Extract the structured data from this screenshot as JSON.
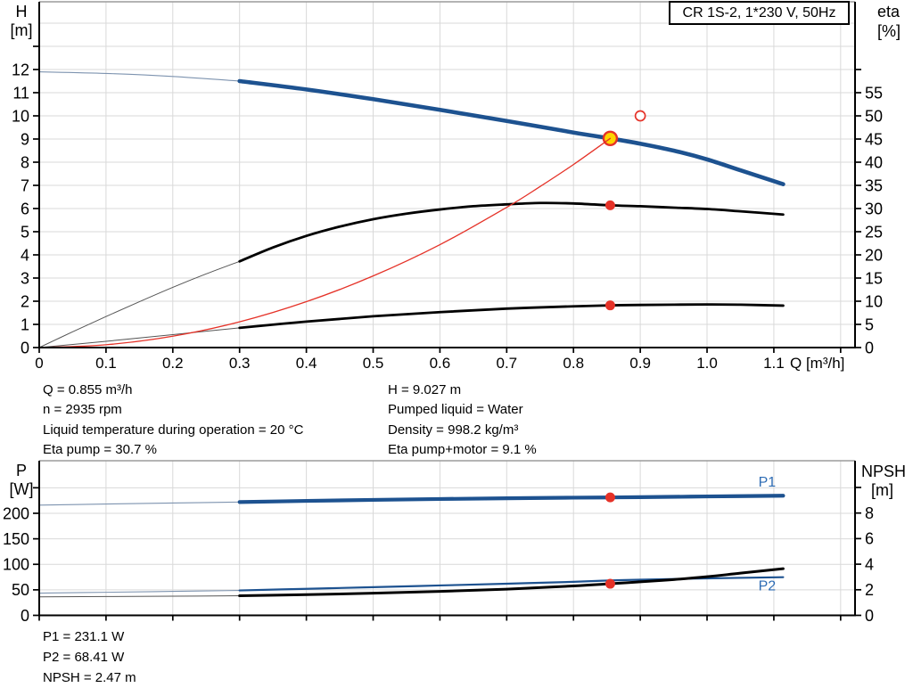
{
  "colors": {
    "curve_blue": "#1d5290",
    "label_blue": "#2e6cb4",
    "red": "#e53228",
    "yellow": "#ffd400",
    "black": "#000000",
    "grid": "#d9d9d9",
    "axis": "#000000",
    "border_top": "#9c9c9c",
    "ext_blue": "#7d93af",
    "ext_dark": "#555555"
  },
  "info_block": {
    "left": [
      "Q = 0.855 m³/h",
      "n = 2935 rpm",
      "Liquid temperature during operation = 20 °C",
      "Eta pump = 30.7 %"
    ],
    "right": [
      "H = 9.027 m",
      "Pumped liquid = Water",
      "Density = 998.2 kg/m³",
      "Eta pump+motor = 9.1 %"
    ]
  },
  "result_block": {
    "lines": [
      "P1 = 231.1 W",
      "P2 = 68.41 W",
      "NPSH = 2.47 m"
    ]
  },
  "chart_data": [
    {
      "id": "hq-chart",
      "type": "line",
      "title": "CR 1S-2, 1*230 V, 50Hz",
      "x": {
        "title": "Q [m³/h]",
        "min": 0,
        "max": 1.2216,
        "ticks": [
          "0",
          "0.1",
          "0.2",
          "0.3",
          "0.4",
          "0.5",
          "0.6",
          "0.7",
          "0.8",
          "0.9",
          "1.0",
          "1.1"
        ],
        "grid": [
          0.1,
          0.2,
          0.3,
          0.4,
          0.5,
          0.6,
          0.7,
          0.8,
          0.9,
          1.0,
          1.1,
          1.2
        ],
        "show_labels": true
      },
      "left": {
        "title": "H",
        "unit": "[m]",
        "min": 0,
        "max": 14.923,
        "ticks": [
          0,
          1,
          2,
          3,
          4,
          5,
          6,
          7,
          8,
          9,
          10,
          11,
          12
        ],
        "extra_ticks": [
          13
        ],
        "grid": [
          1,
          2,
          3,
          4,
          5,
          6,
          7,
          8,
          9,
          10,
          11,
          12,
          13,
          14
        ]
      },
      "right": {
        "title": "eta",
        "unit": "[%]",
        "min": 0,
        "max": 74.62,
        "ticks": [
          0,
          5,
          10,
          15,
          20,
          25,
          30,
          35,
          40,
          45,
          50,
          55
        ],
        "extra_ticks": [
          60
        ]
      },
      "series": [
        {
          "name": "head-curve-extension",
          "axis": "left",
          "color": "ext_blue",
          "width": 1.1,
          "points": [
            [
              0,
              11.9
            ],
            [
              0.1,
              11.83
            ],
            [
              0.2,
              11.7
            ],
            [
              0.3,
              11.5
            ]
          ]
        },
        {
          "name": "head-curve",
          "axis": "left",
          "color": "curve_blue",
          "width": 4.6,
          "points": [
            [
              0.3,
              11.5
            ],
            [
              0.4,
              11.14
            ],
            [
              0.5,
              10.72
            ],
            [
              0.6,
              10.26
            ],
            [
              0.7,
              9.78
            ],
            [
              0.8,
              9.28
            ],
            [
              0.855,
              9.027
            ],
            [
              0.9,
              8.8
            ],
            [
              0.95,
              8.5
            ],
            [
              1.0,
              8.12
            ],
            [
              1.05,
              7.65
            ],
            [
              1.114,
              7.05
            ]
          ]
        },
        {
          "name": "eta-pump-extension",
          "axis": "right",
          "color": "ext_dark",
          "width": 1,
          "points": [
            [
              0,
              0
            ],
            [
              0.05,
              3.4
            ],
            [
              0.1,
              6.7
            ],
            [
              0.15,
              9.9
            ],
            [
              0.2,
              13.0
            ],
            [
              0.25,
              15.9
            ],
            [
              0.3,
              18.6
            ]
          ]
        },
        {
          "name": "eta-pump-curve",
          "axis": "right",
          "color": "black",
          "width": 2.8,
          "points": [
            [
              0.3,
              18.6
            ],
            [
              0.35,
              21.6
            ],
            [
              0.4,
              24.1
            ],
            [
              0.45,
              26.1
            ],
            [
              0.5,
              27.7
            ],
            [
              0.55,
              28.9
            ],
            [
              0.6,
              29.8
            ],
            [
              0.65,
              30.5
            ],
            [
              0.7,
              30.9
            ],
            [
              0.75,
              31.2
            ],
            [
              0.8,
              31.1
            ],
            [
              0.855,
              30.7
            ],
            [
              0.9,
              30.5
            ],
            [
              0.95,
              30.2
            ],
            [
              1.0,
              29.9
            ],
            [
              1.05,
              29.4
            ],
            [
              1.114,
              28.7
            ]
          ]
        },
        {
          "name": "eta-total-extension",
          "axis": "right",
          "color": "ext_dark",
          "width": 1,
          "points": [
            [
              0,
              0
            ],
            [
              0.1,
              1.35
            ],
            [
              0.2,
              2.8
            ],
            [
              0.3,
              4.25
            ]
          ]
        },
        {
          "name": "eta-total-curve",
          "axis": "right",
          "color": "black",
          "width": 2.8,
          "points": [
            [
              0.3,
              4.25
            ],
            [
              0.4,
              5.6
            ],
            [
              0.5,
              6.75
            ],
            [
              0.6,
              7.65
            ],
            [
              0.7,
              8.4
            ],
            [
              0.8,
              8.9
            ],
            [
              0.855,
              9.1
            ],
            [
              0.9,
              9.2
            ],
            [
              1.0,
              9.3
            ],
            [
              1.05,
              9.25
            ],
            [
              1.114,
              9.05
            ]
          ]
        },
        {
          "name": "system-curve",
          "axis": "left",
          "color": "red",
          "width": 1.3,
          "overlay": true,
          "points": [
            [
              0,
              0
            ],
            [
              0.1,
              0.12
            ],
            [
              0.2,
              0.49
            ],
            [
              0.3,
              1.11
            ],
            [
              0.4,
              1.98
            ],
            [
              0.5,
              3.09
            ],
            [
              0.6,
              4.44
            ],
            [
              0.7,
              6.05
            ],
            [
              0.75,
              6.95
            ],
            [
              0.8,
              7.9
            ],
            [
              0.855,
              9.027
            ]
          ]
        }
      ],
      "markers": [
        {
          "style": "op",
          "x": 0.855,
          "y": 9.027,
          "axis": "left",
          "name": "operating-point"
        },
        {
          "style": "open",
          "x": 0.9,
          "y": 10.0,
          "axis": "left",
          "name": "rated-duty-point"
        },
        {
          "style": "dot",
          "x": 0.855,
          "y": 30.7,
          "axis": "right",
          "name": "eta-pump-point"
        },
        {
          "style": "dot",
          "x": 0.855,
          "y": 9.1,
          "axis": "right",
          "name": "eta-total-point"
        }
      ]
    },
    {
      "id": "power-npsh-chart",
      "type": "line",
      "title": "",
      "x": {
        "title": "",
        "min": 0,
        "max": 1.2216,
        "ticks": [],
        "grid": [
          0.1,
          0.2,
          0.3,
          0.4,
          0.5,
          0.6,
          0.7,
          0.8,
          0.9,
          1.0,
          1.1,
          1.2
        ],
        "show_labels": false
      },
      "left": {
        "title": "P",
        "unit": "[W]",
        "min": 0,
        "max": 303,
        "ticks": [
          0,
          50,
          100,
          150,
          200
        ],
        "extra_ticks": [
          250
        ],
        "grid": [
          50,
          100,
          150,
          200,
          250
        ]
      },
      "right": {
        "title": "NPSH",
        "unit": "[m]",
        "min": 0,
        "max": 12.09,
        "ticks": [
          0,
          2,
          4,
          6,
          8
        ],
        "extra_ticks": [
          10
        ]
      },
      "series": [
        {
          "name": "p1-curve-extension",
          "axis": "left",
          "color": "ext_blue",
          "width": 1.1,
          "points": [
            [
              0,
              216
            ],
            [
              0.1,
              218.2
            ],
            [
              0.2,
              220.2
            ],
            [
              0.3,
              222
            ]
          ]
        },
        {
          "name": "p1-curve",
          "axis": "left",
          "color": "curve_blue",
          "width": 4.2,
          "label": "P1",
          "label_at": [
            1.09,
            252
          ],
          "points": [
            [
              0.3,
              222
            ],
            [
              0.4,
              224.3
            ],
            [
              0.5,
              226.3
            ],
            [
              0.6,
              228
            ],
            [
              0.7,
              229.4
            ],
            [
              0.8,
              230.6
            ],
            [
              0.855,
              231.1
            ],
            [
              0.9,
              231.6
            ],
            [
              1.0,
              233
            ],
            [
              1.114,
              234.5
            ]
          ]
        },
        {
          "name": "p2-curve-extension",
          "axis": "left",
          "color": "ext_blue",
          "width": 1.1,
          "points": [
            [
              0,
              43.5
            ],
            [
              0.1,
              45.2
            ],
            [
              0.2,
              47
            ],
            [
              0.3,
              48.8
            ]
          ]
        },
        {
          "name": "p2-curve",
          "axis": "left",
          "color": "curve_blue",
          "width": 2.2,
          "label": "P2",
          "label_at": [
            1.09,
            49
          ],
          "points": [
            [
              0.3,
              48.8
            ],
            [
              0.4,
              52
            ],
            [
              0.5,
              55.2
            ],
            [
              0.6,
              58.6
            ],
            [
              0.7,
              62
            ],
            [
              0.8,
              65.7
            ],
            [
              0.855,
              68.41
            ],
            [
              0.9,
              69.8
            ],
            [
              1.0,
              72.5
            ],
            [
              1.114,
              74.8
            ]
          ]
        },
        {
          "name": "npsh-curve-extension",
          "axis": "right",
          "color": "ext_dark",
          "width": 1,
          "points": [
            [
              0,
              1.45
            ],
            [
              0.1,
              1.47
            ],
            [
              0.2,
              1.5
            ],
            [
              0.3,
              1.53
            ]
          ]
        },
        {
          "name": "npsh-curve",
          "axis": "right",
          "color": "black",
          "width": 3,
          "points": [
            [
              0.3,
              1.53
            ],
            [
              0.4,
              1.62
            ],
            [
              0.5,
              1.73
            ],
            [
              0.6,
              1.87
            ],
            [
              0.7,
              2.05
            ],
            [
              0.8,
              2.3
            ],
            [
              0.855,
              2.47
            ],
            [
              0.9,
              2.62
            ],
            [
              0.95,
              2.8
            ],
            [
              1.0,
              3.02
            ],
            [
              1.05,
              3.3
            ],
            [
              1.114,
              3.65
            ]
          ]
        }
      ],
      "markers": [
        {
          "style": "dot",
          "x": 0.855,
          "y": 231.1,
          "axis": "left",
          "name": "p1-point"
        },
        {
          "style": "dot",
          "x": 0.855,
          "y": 2.47,
          "axis": "right",
          "name": "npsh-p2-point"
        }
      ]
    }
  ]
}
